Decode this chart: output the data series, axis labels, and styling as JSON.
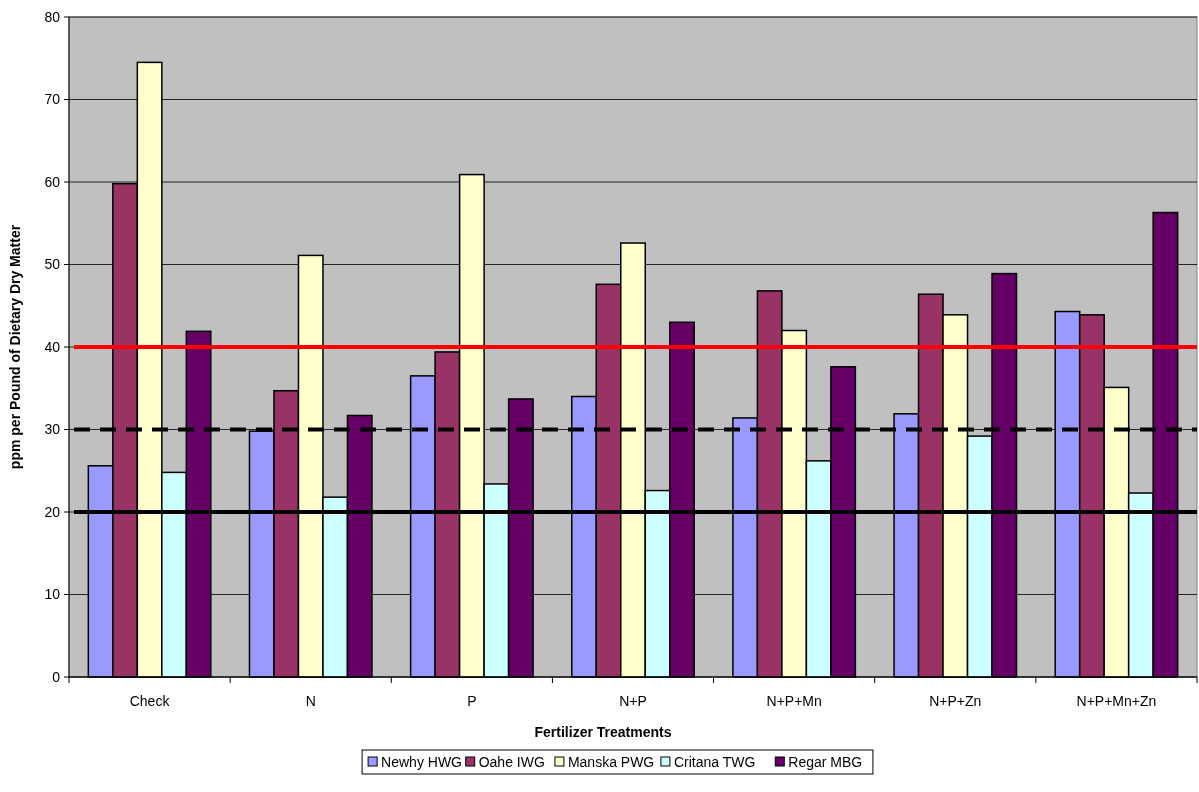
{
  "chart_data": {
    "type": "bar",
    "xlabel": "Fertilizer Treatments",
    "ylabel": "ppm per Pound of Dietary Dry Matter",
    "categories": [
      "Check",
      "N",
      "P",
      "N+P",
      "N+P+Mn",
      "N+P+Zn",
      "N+P+Mn+Zn"
    ],
    "series": [
      {
        "name": "Newhy HWG",
        "color": "#9999ff",
        "values": [
          25.6,
          29.8,
          36.5,
          34.0,
          31.4,
          31.9,
          44.3
        ]
      },
      {
        "name": "Oahe IWG",
        "color": "#993366",
        "values": [
          59.8,
          34.7,
          39.4,
          47.6,
          46.8,
          46.4,
          43.9
        ]
      },
      {
        "name": "Manska PWG",
        "color": "#ffffcc",
        "values": [
          74.5,
          51.1,
          60.9,
          52.6,
          42.0,
          43.9,
          35.1
        ]
      },
      {
        "name": "Critana TWG",
        "color": "#ccffff",
        "values": [
          24.8,
          21.8,
          23.4,
          22.6,
          26.2,
          29.2,
          22.3
        ]
      },
      {
        "name": "Regar MBG",
        "color": "#660066",
        "values": [
          41.9,
          31.7,
          33.7,
          43.0,
          37.6,
          48.9,
          56.3
        ]
      }
    ],
    "ylim": [
      0,
      80
    ],
    "yticks": [
      0,
      10,
      20,
      30,
      40,
      50,
      60,
      70,
      80
    ],
    "grid": "y",
    "legend": "bottom",
    "ref_lines": [
      {
        "axis": "y",
        "value": 40,
        "color": "#ff0000",
        "line_style": "solid"
      },
      {
        "axis": "y",
        "value": 30,
        "color": "#000000",
        "line_style": "dashed"
      },
      {
        "axis": "y",
        "value": 20,
        "color": "#000000",
        "line_style": "solid"
      }
    ]
  }
}
